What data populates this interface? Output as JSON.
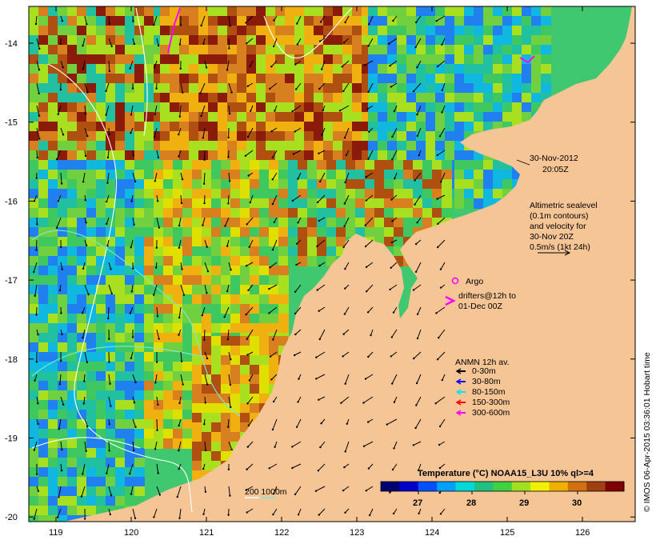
{
  "map": {
    "land_color": "#f6c596",
    "lat_ticks": [
      "-14",
      "-15",
      "-16",
      "-17",
      "-18",
      "-19",
      "-20"
    ],
    "lon_ticks": [
      "119",
      "120",
      "121",
      "122",
      "123",
      "124",
      "125",
      "126"
    ]
  },
  "annotations": {
    "datetime_line1": "30-Nov-2012",
    "datetime_line2": "20:05Z",
    "altimetry_lines": [
      "Altimetric sealevel",
      "(0.1m contours)",
      "and velocity for",
      "30-Nov 20Z",
      "0.5m/s (1kt 24h)"
    ],
    "argo_label": "Argo",
    "drifter_line1": "drifters@12h to",
    "drifter_line2": "01-Dec 00Z",
    "anmn_title": "ANMN 12h av.",
    "anmn_items": [
      {
        "label": "0-30m",
        "color": "#000000"
      },
      {
        "label": "30-80m",
        "color": "#0000ff"
      },
      {
        "label": "80-150m",
        "color": "#00e5e5"
      },
      {
        "label": "150-300m",
        "color": "#ff0000"
      },
      {
        "label": "300-600m",
        "color": "#ff00ff"
      }
    ],
    "isobath_label": "200  1000m"
  },
  "colorbar": {
    "title": "Temperature (°C) NOAA15_L3U 10% ql>=4",
    "tick_labels": [
      "27",
      "28",
      "29",
      "30"
    ],
    "colors": [
      "#000070",
      "#0000c8",
      "#0050ff",
      "#00a0ff",
      "#00d8d8",
      "#20c080",
      "#40d040",
      "#a0e020",
      "#f0f000",
      "#f0b000",
      "#d07010",
      "#a04010",
      "#800000"
    ]
  },
  "footer": {
    "vertical_stamp": "© IMOS 06-Apr-2015 03:36:01 Hobart time"
  }
}
